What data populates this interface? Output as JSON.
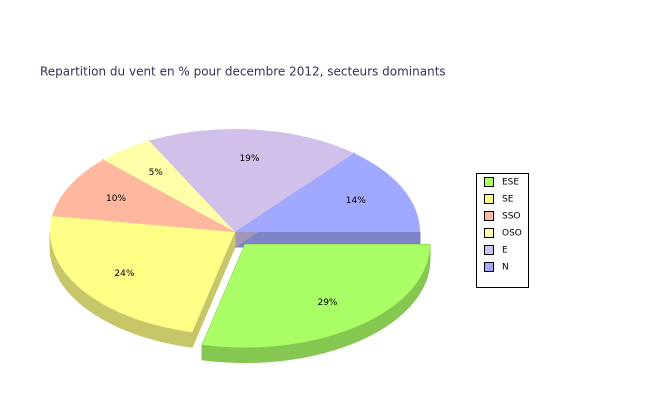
{
  "chart_data": {
    "type": "pie",
    "title": "Repartition du vent en % pour decembre 2012, secteurs dominants",
    "categories": [
      "ESE",
      "SE",
      "SSO",
      "OSO",
      "E",
      "N"
    ],
    "values": [
      29,
      24,
      10,
      5,
      19,
      14
    ],
    "value_labels": [
      "29%",
      "24%",
      "10%",
      "5%",
      "19%",
      "14%"
    ],
    "colors": [
      "#aaff66",
      "#ffff88",
      "#ffb8a0",
      "#ffffaa",
      "#d0c0ea",
      "#a0a8ff"
    ],
    "exploded": "ESE",
    "legend": "right"
  }
}
